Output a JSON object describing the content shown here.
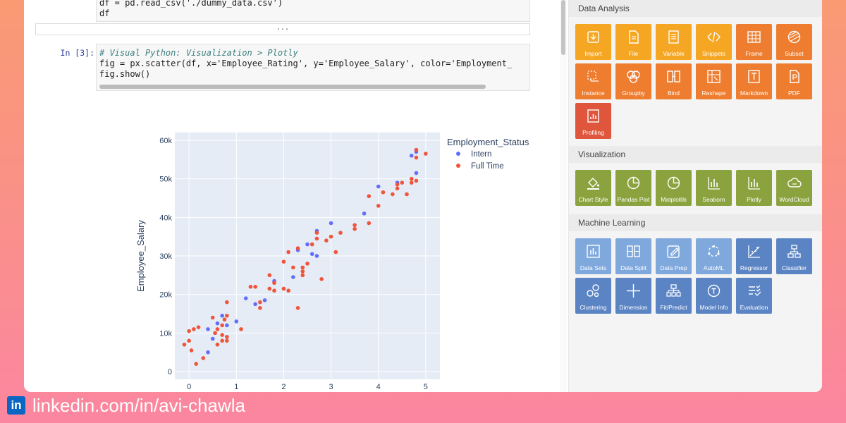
{
  "notebook": {
    "cell1_lines": [
      "df = pd.read_csv('./dummy_data.csv')",
      "df"
    ],
    "collapsed_label": "...",
    "cell2_prompt": "In [3]:",
    "cell2_comment": "# Visual Python: Visualization > Plotly",
    "cell2_line2": "fig = px.scatter(df, x='Employee_Rating', y='Employee_Salary', color='Employment_",
    "cell2_line3": "fig.show()"
  },
  "chart_data": {
    "type": "scatter",
    "xlabel": "",
    "ylabel": "Employee_Salary",
    "xlim": [
      -0.3,
      5.3
    ],
    "ylim": [
      -2000,
      62000
    ],
    "x_ticks": [
      "0",
      "1",
      "2",
      "3",
      "4",
      "5"
    ],
    "y_ticks": [
      "0",
      "10k",
      "20k",
      "30k",
      "40k",
      "50k",
      "60k"
    ],
    "legend_title": "Employment_Status",
    "legend_position": "top-right",
    "grid": true,
    "series": [
      {
        "name": "Intern",
        "color": "#636efa",
        "points": [
          [
            0.4,
            5000
          ],
          [
            0.4,
            11000
          ],
          [
            0.5,
            8500
          ],
          [
            0.6,
            12500
          ],
          [
            0.7,
            14500
          ],
          [
            0.8,
            12000
          ],
          [
            1.0,
            13000
          ],
          [
            1.2,
            19000
          ],
          [
            1.4,
            17500
          ],
          [
            1.6,
            18500
          ],
          [
            1.8,
            23500
          ],
          [
            2.2,
            24500
          ],
          [
            2.3,
            31500
          ],
          [
            2.5,
            33000
          ],
          [
            2.6,
            30500
          ],
          [
            2.7,
            30000
          ],
          [
            2.7,
            36500
          ],
          [
            3.0,
            38500
          ],
          [
            3.7,
            41000
          ],
          [
            4.0,
            48000
          ],
          [
            4.4,
            49000
          ],
          [
            4.7,
            56000
          ],
          [
            4.8,
            51500
          ],
          [
            4.8,
            57000
          ]
        ]
      },
      {
        "name": "Full Time",
        "color": "#ef553b",
        "points": [
          [
            -0.1,
            7000
          ],
          [
            0.0,
            10500
          ],
          [
            0.0,
            8000
          ],
          [
            0.05,
            5500
          ],
          [
            0.1,
            11000
          ],
          [
            0.15,
            2000
          ],
          [
            0.2,
            11500
          ],
          [
            0.3,
            3500
          ],
          [
            0.5,
            14000
          ],
          [
            0.55,
            10000
          ],
          [
            0.6,
            7000
          ],
          [
            0.6,
            11000
          ],
          [
            0.7,
            8000
          ],
          [
            0.7,
            9500
          ],
          [
            0.7,
            12000
          ],
          [
            0.75,
            13500
          ],
          [
            0.8,
            9000
          ],
          [
            0.8,
            8000
          ],
          [
            0.8,
            14500
          ],
          [
            0.8,
            18000
          ],
          [
            1.1,
            11000
          ],
          [
            1.3,
            22000
          ],
          [
            1.4,
            22000
          ],
          [
            1.5,
            18000
          ],
          [
            1.5,
            16500
          ],
          [
            1.7,
            21500
          ],
          [
            1.7,
            25000
          ],
          [
            1.8,
            21000
          ],
          [
            1.8,
            23000
          ],
          [
            2.0,
            21500
          ],
          [
            2.0,
            28500
          ],
          [
            2.1,
            31000
          ],
          [
            2.1,
            21000
          ],
          [
            2.2,
            27000
          ],
          [
            2.3,
            16500
          ],
          [
            2.3,
            32000
          ],
          [
            2.4,
            25000
          ],
          [
            2.4,
            27000
          ],
          [
            2.4,
            26000
          ],
          [
            2.5,
            28000
          ],
          [
            2.6,
            33000
          ],
          [
            2.7,
            34500
          ],
          [
            2.7,
            36000
          ],
          [
            2.8,
            24000
          ],
          [
            2.9,
            34000
          ],
          [
            3.0,
            35000
          ],
          [
            3.1,
            31000
          ],
          [
            3.2,
            36000
          ],
          [
            3.5,
            38000
          ],
          [
            3.5,
            37000
          ],
          [
            3.8,
            38500
          ],
          [
            3.8,
            45500
          ],
          [
            4.0,
            43000
          ],
          [
            4.1,
            46500
          ],
          [
            4.4,
            47500
          ],
          [
            4.4,
            48500
          ],
          [
            4.5,
            49000
          ],
          [
            4.6,
            46000
          ],
          [
            4.7,
            49000
          ],
          [
            4.8,
            49500
          ],
          [
            4.8,
            55500
          ],
          [
            4.8,
            57500
          ],
          [
            5.0,
            56500
          ],
          [
            4.3,
            46000
          ],
          [
            4.7,
            50000
          ]
        ]
      }
    ]
  },
  "panel": {
    "sections": [
      {
        "title": "Data Analysis",
        "color": "#f5a623",
        "tiles": [
          {
            "label": "Import",
            "icon": "import-icon",
            "color": "#f5a623"
          },
          {
            "label": "File",
            "icon": "file-icon",
            "color": "#f5a623"
          },
          {
            "label": "Variable",
            "icon": "variable-icon",
            "color": "#f5a623"
          },
          {
            "label": "Snippets",
            "icon": "code-icon",
            "color": "#f5a623"
          },
          {
            "label": "Frame",
            "icon": "frame-icon",
            "color": "#ee7d30"
          },
          {
            "label": "Subset",
            "icon": "subset-icon",
            "color": "#ee7d30"
          },
          {
            "label": "Instance",
            "icon": "instance-icon",
            "color": "#ee7d30"
          },
          {
            "label": "Groupby",
            "icon": "groupby-icon",
            "color": "#ee7d30"
          },
          {
            "label": "Bind",
            "icon": "bind-icon",
            "color": "#ee7d30"
          },
          {
            "label": "Reshape",
            "icon": "reshape-icon",
            "color": "#ee7d30"
          },
          {
            "label": "Markdown",
            "icon": "markdown-icon",
            "color": "#ee7d30"
          },
          {
            "label": "PDF",
            "icon": "pdf-icon",
            "color": "#ee7d30"
          },
          {
            "label": "Profiling",
            "icon": "profiling-icon",
            "color": "#e0563c"
          }
        ]
      },
      {
        "title": "Visualization",
        "color": "#8aa33f",
        "tiles": [
          {
            "label": "Chart Style",
            "icon": "paint-bucket-icon",
            "color": "#8aa33f"
          },
          {
            "label": "Pandas Plot",
            "icon": "pie-chart-icon",
            "color": "#8aa33f"
          },
          {
            "label": "Matplotlib",
            "icon": "pie-chart-icon",
            "color": "#8aa33f"
          },
          {
            "label": "Seaborn",
            "icon": "bar-chart-icon",
            "color": "#8aa33f"
          },
          {
            "label": "Plotly",
            "icon": "bar-chart-icon",
            "color": "#8aa33f"
          },
          {
            "label": "WordCloud",
            "icon": "cloud-icon",
            "color": "#8aa33f"
          }
        ]
      },
      {
        "title": "Machine Learning",
        "color": "#7fa8dd",
        "tiles": [
          {
            "label": "Data Sets",
            "icon": "dataset-icon",
            "color": "#7fa8dd"
          },
          {
            "label": "Data Split",
            "icon": "split-icon",
            "color": "#7fa8dd"
          },
          {
            "label": "Data Prep",
            "icon": "edit-icon",
            "color": "#7fa8dd"
          },
          {
            "label": "AutoML",
            "icon": "automl-icon",
            "color": "#7fa8dd"
          },
          {
            "label": "Regressor",
            "icon": "regression-icon",
            "color": "#5b84c4"
          },
          {
            "label": "Classifier",
            "icon": "tree-icon",
            "color": "#5b84c4"
          },
          {
            "label": "Clustering",
            "icon": "cluster-icon",
            "color": "#5b84c4"
          },
          {
            "label": "Dimension",
            "icon": "axes-icon",
            "color": "#5b84c4"
          },
          {
            "label": "Fit/Predict",
            "icon": "hierarchy-icon",
            "color": "#5b84c4"
          },
          {
            "label": "Model Info",
            "icon": "info-icon",
            "color": "#5b84c4"
          },
          {
            "label": "Evaluation",
            "icon": "checklist-icon",
            "color": "#5b84c4"
          }
        ]
      }
    ]
  },
  "footer": {
    "logo_text": "in",
    "profile": "linkedin.com/in/avi-chawla",
    "logo_color": "#0a66c2"
  }
}
